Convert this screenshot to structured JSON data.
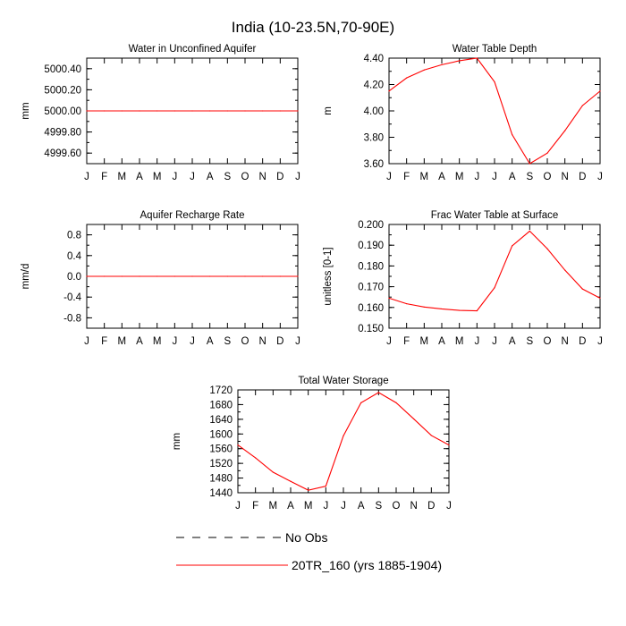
{
  "figure_title": "India (10-23.5N,70-90E)",
  "months": [
    "J",
    "F",
    "M",
    "A",
    "M",
    "J",
    "J",
    "A",
    "S",
    "O",
    "N",
    "D",
    "J"
  ],
  "legend": {
    "obs_label": "No Obs",
    "model_label": "20TR_160 (yrs 1885-1904)",
    "model_color": "#ff0000",
    "obs_color": "#000000"
  },
  "chart_data": [
    {
      "type": "line",
      "title": "Water in Unconfined Aquifer",
      "ylabel": "mm",
      "ylim": [
        4999.5,
        5000.5
      ],
      "yticks": [
        4999.6,
        4999.8,
        5000.0,
        5000.2,
        5000.4
      ],
      "ytick_labels": [
        "4999.60",
        "4999.80",
        "5000.00",
        "5000.20",
        "5000.40"
      ],
      "minor_step": 0.1,
      "series": [
        {
          "name": "20TR_160 (yrs 1885-1904)",
          "values": [
            5000,
            5000,
            5000,
            5000,
            5000,
            5000,
            5000,
            5000,
            5000,
            5000,
            5000,
            5000,
            5000
          ]
        }
      ]
    },
    {
      "type": "line",
      "title": "Water Table Depth",
      "ylabel": "m",
      "ylim": [
        3.6,
        4.4
      ],
      "yticks": [
        3.6,
        3.8,
        4.0,
        4.2,
        4.4
      ],
      "ytick_labels": [
        "3.60",
        "3.80",
        "4.00",
        "4.20",
        "4.40"
      ],
      "minor_step": 0.1,
      "series": [
        {
          "name": "20TR_160 (yrs 1885-1904)",
          "values": [
            4.15,
            4.25,
            4.31,
            4.35,
            4.38,
            4.4,
            4.22,
            3.82,
            3.6,
            3.68,
            3.85,
            4.04,
            4.15
          ]
        }
      ]
    },
    {
      "type": "line",
      "title": "Aquifer Recharge Rate",
      "ylabel": "mm/d",
      "ylim": [
        -1.0,
        1.0
      ],
      "yticks": [
        -0.8,
        -0.4,
        0.0,
        0.4,
        0.8
      ],
      "ytick_labels": [
        "-0.8",
        "-0.4",
        "0.0",
        "0.4",
        "0.8"
      ],
      "minor_step": 0.2,
      "series": [
        {
          "name": "20TR_160 (yrs 1885-1904)",
          "values": [
            0,
            0,
            0,
            0,
            0,
            0,
            0,
            0,
            0,
            0,
            0,
            0,
            0
          ]
        }
      ]
    },
    {
      "type": "line",
      "title": "Frac Water Table at Surface",
      "ylabel": "unitless [0-1]",
      "ylim": [
        0.15,
        0.2
      ],
      "yticks": [
        0.15,
        0.16,
        0.17,
        0.18,
        0.19,
        0.2
      ],
      "ytick_labels": [
        "0.150",
        "0.160",
        "0.170",
        "0.180",
        "0.190",
        "0.200"
      ],
      "minor_step": 0.005,
      "series": [
        {
          "name": "20TR_160 (yrs 1885-1904)",
          "values": [
            0.1645,
            0.1618,
            0.1602,
            0.1593,
            0.1586,
            0.1584,
            0.1695,
            0.1897,
            0.1968,
            0.1883,
            0.178,
            0.1689,
            0.1645
          ]
        }
      ]
    },
    {
      "type": "line",
      "title": "Total Water Storage",
      "ylabel": "mm",
      "ylim": [
        1440,
        1720
      ],
      "yticks": [
        1440,
        1480,
        1520,
        1560,
        1600,
        1640,
        1680,
        1720
      ],
      "ytick_labels": [
        "1440",
        "1480",
        "1520",
        "1560",
        "1600",
        "1640",
        "1680",
        "1720"
      ],
      "minor_step": 20,
      "series": [
        {
          "name": "20TR_160 (yrs 1885-1904)",
          "values": [
            1570,
            1535,
            1496,
            1471,
            1447,
            1458,
            1595,
            1685,
            1713,
            1685,
            1641,
            1596,
            1570
          ]
        }
      ]
    }
  ]
}
